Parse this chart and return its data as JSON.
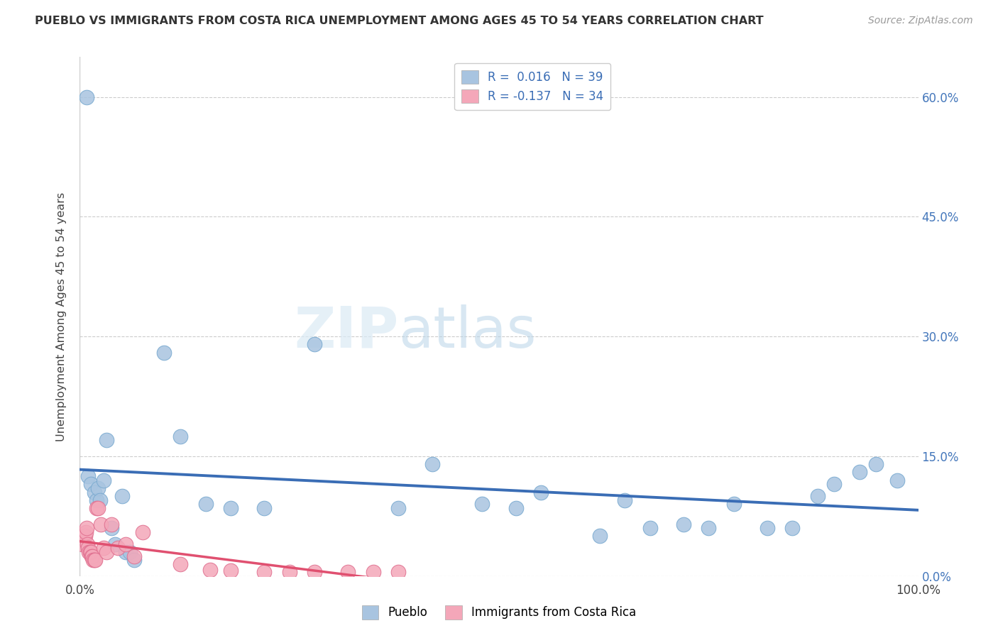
{
  "title": "PUEBLO VS IMMIGRANTS FROM COSTA RICA UNEMPLOYMENT AMONG AGES 45 TO 54 YEARS CORRELATION CHART",
  "source": "Source: ZipAtlas.com",
  "ylabel_label": "Unemployment Among Ages 45 to 54 years",
  "legend_label1": "Pueblo",
  "legend_label2": "Immigrants from Costa Rica",
  "R1": 0.016,
  "N1": 39,
  "R2": -0.137,
  "N2": 34,
  "pueblo_color": "#a8c4e0",
  "pueblo_edge_color": "#7aaad0",
  "costa_rica_color": "#f4a7b9",
  "costa_rica_edge_color": "#e07090",
  "pueblo_line_color": "#3a6db5",
  "costa_rica_line_color": "#e05070",
  "watermark_color": "#daeaf5",
  "pueblo_x": [
    0.008,
    0.01,
    0.013,
    0.017,
    0.02,
    0.022,
    0.024,
    0.028,
    0.032,
    0.038,
    0.042,
    0.05,
    0.055,
    0.06,
    0.065,
    0.1,
    0.12,
    0.15,
    0.18,
    0.22,
    0.28,
    0.38,
    0.42,
    0.48,
    0.52,
    0.55,
    0.62,
    0.65,
    0.68,
    0.72,
    0.75,
    0.78,
    0.82,
    0.85,
    0.88,
    0.9,
    0.93,
    0.95,
    0.975
  ],
  "pueblo_y": [
    0.6,
    0.125,
    0.115,
    0.105,
    0.095,
    0.11,
    0.095,
    0.12,
    0.17,
    0.06,
    0.04,
    0.1,
    0.03,
    0.03,
    0.02,
    0.28,
    0.175,
    0.09,
    0.085,
    0.085,
    0.29,
    0.085,
    0.14,
    0.09,
    0.085,
    0.105,
    0.05,
    0.095,
    0.06,
    0.065,
    0.06,
    0.09,
    0.06,
    0.06,
    0.1,
    0.115,
    0.13,
    0.14,
    0.12
  ],
  "costa_rica_x": [
    0.003,
    0.005,
    0.006,
    0.007,
    0.008,
    0.009,
    0.01,
    0.011,
    0.012,
    0.013,
    0.014,
    0.015,
    0.016,
    0.017,
    0.018,
    0.02,
    0.022,
    0.025,
    0.028,
    0.032,
    0.038,
    0.045,
    0.055,
    0.065,
    0.075,
    0.12,
    0.155,
    0.18,
    0.22,
    0.25,
    0.28,
    0.32,
    0.35,
    0.38
  ],
  "costa_rica_y": [
    0.04,
    0.05,
    0.05,
    0.055,
    0.06,
    0.04,
    0.035,
    0.03,
    0.03,
    0.03,
    0.025,
    0.025,
    0.02,
    0.02,
    0.02,
    0.085,
    0.085,
    0.065,
    0.035,
    0.03,
    0.065,
    0.035,
    0.04,
    0.025,
    0.055,
    0.015,
    0.008,
    0.007,
    0.005,
    0.005,
    0.005,
    0.005,
    0.005,
    0.005
  ],
  "xlim": [
    0.0,
    1.0
  ],
  "ylim": [
    0.0,
    0.65
  ],
  "ytick_vals": [
    0.0,
    0.15,
    0.3,
    0.45,
    0.6
  ],
  "ytick_labels": [
    "0.0%",
    "15.0%",
    "30.0%",
    "45.0%",
    "60.0%"
  ]
}
